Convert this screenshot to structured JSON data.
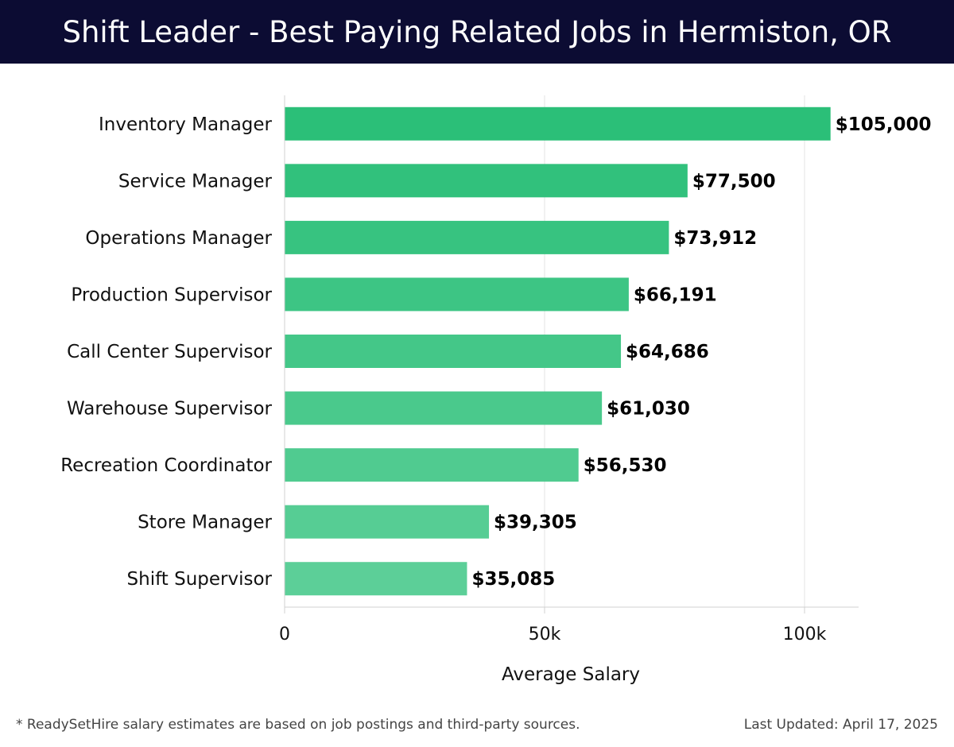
{
  "header": {
    "title": "Shift Leader - Best Paying Related Jobs in Hermiston, OR"
  },
  "footer": {
    "note": "* ReadySetHire salary estimates are based on job postings and third-party sources.",
    "updated": "Last Updated: April 17, 2025"
  },
  "colors": {
    "header_bg": "#0c0c33",
    "bar_top": "#2bbf78",
    "bar_bottom": "#5ccf98"
  },
  "chart_data": {
    "type": "bar",
    "orientation": "horizontal",
    "categories": [
      "Inventory Manager",
      "Service Manager",
      "Operations Manager",
      "Production Supervisor",
      "Call Center Supervisor",
      "Warehouse Supervisor",
      "Recreation Coordinator",
      "Store Manager",
      "Shift Supervisor"
    ],
    "values": [
      105000,
      77500,
      73912,
      66191,
      64686,
      61030,
      56530,
      39305,
      35085
    ],
    "value_labels": [
      "$105,000",
      "$77,500",
      "$73,912",
      "$66,191",
      "$64,686",
      "$61,030",
      "$56,530",
      "$39,305",
      "$35,085"
    ],
    "xlabel": "Average Salary",
    "xlim": [
      0,
      110000
    ],
    "xticks": [
      0,
      50000,
      100000
    ],
    "xtick_labels": [
      "0",
      "50k",
      "100k"
    ],
    "grid": true
  }
}
